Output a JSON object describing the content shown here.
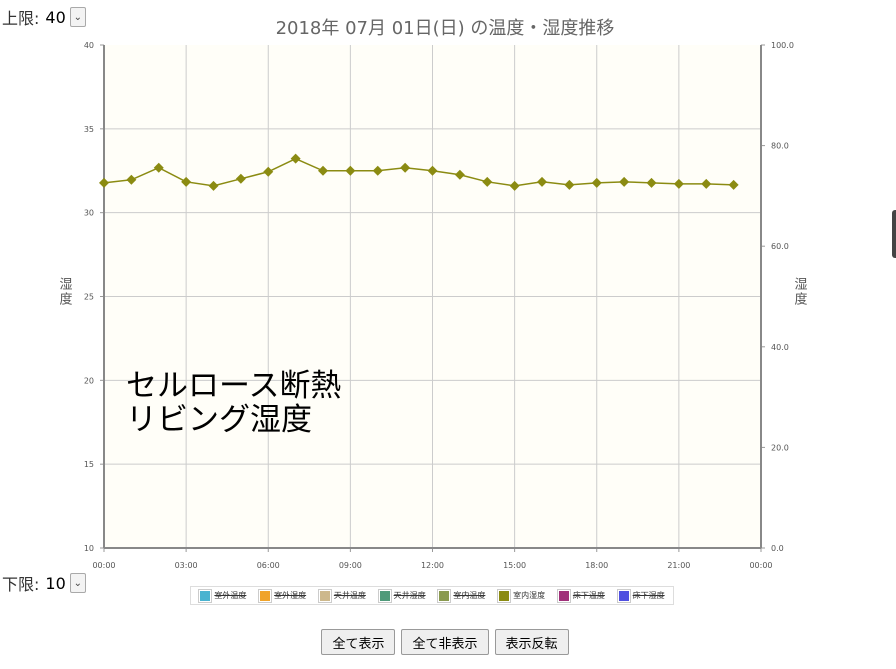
{
  "upper_limit": {
    "label": "上限:",
    "value": "40"
  },
  "lower_limit": {
    "label": "下限:",
    "value": "10"
  },
  "overlay_text": [
    "セルロース断熱",
    "リビング湿度"
  ],
  "legend": [
    {
      "name": "室外温度",
      "color": "#4ab3d0",
      "hidden": true
    },
    {
      "name": "室外湿度",
      "color": "#f0a32a",
      "hidden": true
    },
    {
      "name": "天井温度",
      "color": "#cdb88c",
      "hidden": true
    },
    {
      "name": "天井湿度",
      "color": "#4f9a7a",
      "hidden": true
    },
    {
      "name": "室内温度",
      "color": "#8a9a50",
      "hidden": true
    },
    {
      "name": "室内湿度",
      "color": "#8b8b12",
      "hidden": false
    },
    {
      "name": "床下温度",
      "color": "#a0307a",
      "hidden": true
    },
    {
      "name": "床下湿度",
      "color": "#5050e0",
      "hidden": true
    }
  ],
  "buttons": {
    "show_all": "全て表示",
    "hide_all": "全て非表示",
    "invert": "表示反転"
  },
  "chart_data": {
    "type": "line",
    "title": "2018年 07月 01日(日) の温度・湿度推移",
    "ylabel": "湿度",
    "y2label": "湿度",
    "ylim": [
      10,
      40
    ],
    "y2lim": [
      0,
      100
    ],
    "yticks": [
      "10",
      "15",
      "20",
      "25",
      "30",
      "35",
      "40"
    ],
    "y2ticks": [
      "0.0",
      "20.0",
      "40.0",
      "60.0",
      "80.0",
      "100.0"
    ],
    "xlim": [
      0,
      24
    ],
    "xticks": [
      "00:00",
      "03:00",
      "06:00",
      "09:00",
      "12:00",
      "15:00",
      "18:00",
      "21:00",
      "00:00"
    ],
    "grid": true,
    "series": [
      {
        "name": "室内湿度",
        "color": "#8b8b12",
        "axis": "right",
        "x": [
          0,
          1,
          2,
          3,
          4,
          5,
          6,
          7,
          8,
          9,
          10,
          11,
          12,
          13,
          14,
          15,
          16,
          17,
          18,
          19,
          20,
          21,
          22,
          23
        ],
        "values": [
          72.6,
          73.2,
          75.6,
          72.8,
          72.0,
          73.4,
          74.8,
          77.4,
          75.0,
          75.0,
          75.0,
          75.6,
          75.0,
          74.2,
          72.8,
          72.0,
          72.8,
          72.2,
          72.6,
          72.8,
          72.6,
          72.4,
          72.4,
          72.2
        ]
      }
    ]
  }
}
